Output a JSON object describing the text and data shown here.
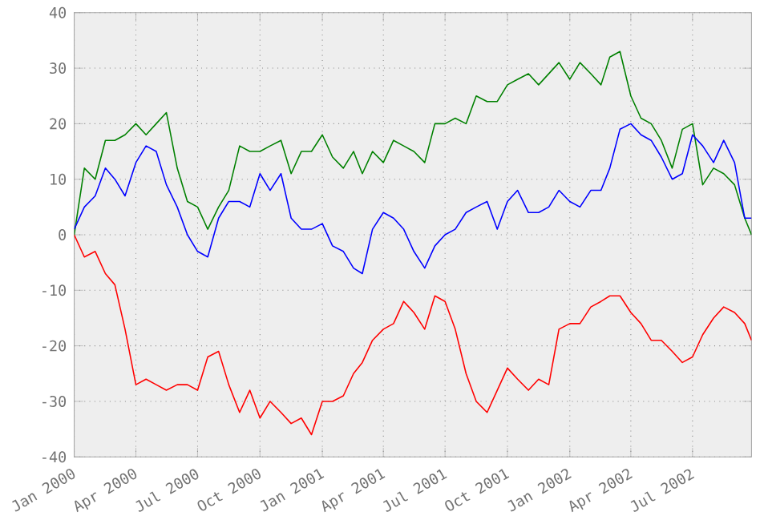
{
  "chart_data": {
    "type": "line",
    "x": [
      "2000-01-01",
      "2000-01-16",
      "2000-02-01",
      "2000-02-16",
      "2000-03-01",
      "2000-03-16",
      "2000-04-01",
      "2000-04-16",
      "2000-05-01",
      "2000-05-16",
      "2000-06-01",
      "2000-06-16",
      "2000-07-01",
      "2000-07-16",
      "2000-08-01",
      "2000-08-16",
      "2000-09-01",
      "2000-09-16",
      "2000-10-01",
      "2000-10-16",
      "2000-11-01",
      "2000-11-16",
      "2000-12-01",
      "2000-12-16",
      "2001-01-01",
      "2001-01-16",
      "2001-02-01",
      "2001-02-16",
      "2001-03-01",
      "2001-03-16",
      "2001-04-01",
      "2001-04-16",
      "2001-05-01",
      "2001-05-16",
      "2001-06-01",
      "2001-06-16",
      "2001-07-01",
      "2001-07-16",
      "2001-08-01",
      "2001-08-16",
      "2001-09-01",
      "2001-09-16",
      "2001-10-01",
      "2001-10-16",
      "2001-11-01",
      "2001-11-16",
      "2001-12-01",
      "2001-12-16",
      "2002-01-01",
      "2002-01-16",
      "2002-02-01",
      "2002-02-16",
      "2002-03-01",
      "2002-03-16",
      "2002-04-01",
      "2002-04-16",
      "2002-05-01",
      "2002-05-16",
      "2002-06-01",
      "2002-06-16",
      "2002-07-01",
      "2002-07-16",
      "2002-08-01",
      "2002-08-16",
      "2002-09-01",
      "2002-09-16",
      "2002-09-26"
    ],
    "series": [
      {
        "color": "#008000",
        "values": [
          0,
          12,
          10,
          17,
          17,
          18,
          20,
          18,
          20,
          22,
          12,
          6,
          5,
          1,
          5,
          8,
          16,
          15,
          15,
          16,
          17,
          11,
          15,
          15,
          18,
          14,
          12,
          15,
          11,
          15,
          13,
          17,
          16,
          15,
          13,
          20,
          20,
          21,
          20,
          25,
          24,
          24,
          27,
          28,
          29,
          27,
          29,
          31,
          28,
          31,
          29,
          27,
          32,
          33,
          25,
          21,
          20,
          17,
          12,
          19,
          20,
          9,
          12,
          11,
          9,
          3,
          0
        ]
      },
      {
        "color": "#0000ff",
        "values": [
          1,
          5,
          7,
          12,
          10,
          7,
          13,
          16,
          15,
          9,
          5,
          0,
          -3,
          -4,
          3,
          6,
          6,
          5,
          11,
          8,
          11,
          3,
          1,
          1,
          2,
          -2,
          -3,
          -6,
          -7,
          1,
          4,
          3,
          1,
          -3,
          -6,
          -2,
          0,
          1,
          4,
          5,
          6,
          1,
          6,
          8,
          4,
          4,
          5,
          8,
          6,
          5,
          8,
          8,
          12,
          19,
          20,
          18,
          17,
          14,
          10,
          11,
          18,
          16,
          13,
          17,
          13,
          3,
          3
        ]
      },
      {
        "color": "#ff0000",
        "values": [
          0,
          -4,
          -3,
          -7,
          -9,
          -17,
          -27,
          -26,
          -27,
          -28,
          -27,
          -27,
          -28,
          -22,
          -21,
          -27,
          -32,
          -28,
          -33,
          -30,
          -32,
          -34,
          -33,
          -36,
          -30,
          -30,
          -29,
          -25,
          -23,
          -19,
          -17,
          -16,
          -12,
          -14,
          -17,
          -11,
          -12,
          -17,
          -25,
          -30,
          -32,
          -28,
          -24,
          -26,
          -28,
          -26,
          -27,
          -17,
          -16,
          -16,
          -13,
          -12,
          -11,
          -11,
          -14,
          -16,
          -19,
          -19,
          -21,
          -23,
          -22,
          -18,
          -15,
          -13,
          -14,
          -16,
          -19
        ]
      }
    ],
    "xlim": [
      "2000-01-01",
      "2002-09-26"
    ],
    "xticks": [
      {
        "value": "2000-01-01",
        "label": "Jan 2000"
      },
      {
        "value": "2000-04-01",
        "label": "Apr 2000"
      },
      {
        "value": "2000-07-01",
        "label": "Jul 2000"
      },
      {
        "value": "2000-10-01",
        "label": "Oct 2000"
      },
      {
        "value": "2001-01-01",
        "label": "Jan 2001"
      },
      {
        "value": "2001-04-01",
        "label": "Apr 2001"
      },
      {
        "value": "2001-07-01",
        "label": "Jul 2001"
      },
      {
        "value": "2001-10-01",
        "label": "Oct 2001"
      },
      {
        "value": "2002-01-01",
        "label": "Jan 2002"
      },
      {
        "value": "2002-04-01",
        "label": "Apr 2002"
      },
      {
        "value": "2002-07-01",
        "label": "Jul 2002"
      }
    ],
    "ylim": [
      -40,
      40
    ],
    "yticks": [
      -40,
      -30,
      -20,
      -10,
      0,
      10,
      20,
      30,
      40
    ],
    "grid": true,
    "marker": "none",
    "line_style": "solid"
  }
}
